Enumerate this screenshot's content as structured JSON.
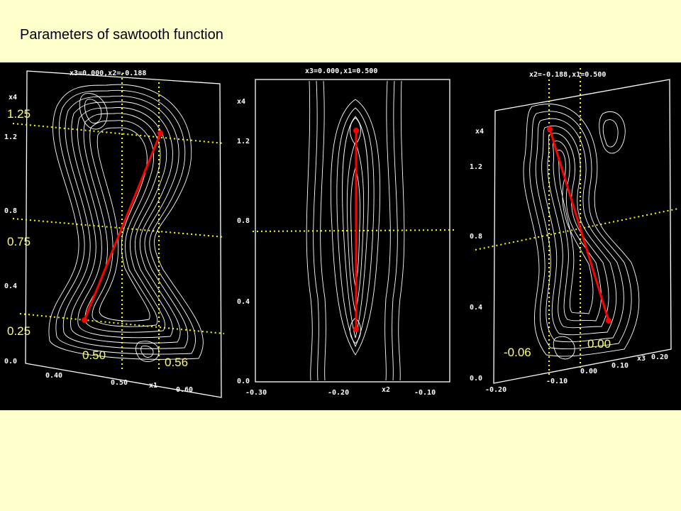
{
  "title": "Parameters of sawtooth function",
  "panels": [
    {
      "header": "x3=0.000,x2=-0.188",
      "y_axis_label": "x4",
      "y_ticks": [
        "1.2",
        "0.8",
        "0.4",
        "0.0"
      ],
      "x_axis_label": "x1",
      "x_ticks": [
        "0.40",
        "0.50",
        "0.60"
      ],
      "annotations": [
        "1.25",
        "0.75",
        "0.25",
        "0.50",
        "0.56"
      ]
    },
    {
      "header": "x3=0.000,x1=0.500",
      "y_axis_label": "x4",
      "y_ticks": [
        "1.2",
        "0.8",
        "0.4",
        "0.0"
      ],
      "x_axis_label": "x2",
      "x_ticks": [
        "-0.30",
        "-0.20",
        "-0.10"
      ]
    },
    {
      "header": "x2=-0.188,x1=0.500",
      "y_axis_label": "x4",
      "y_ticks": [
        "1.2",
        "0.8",
        "0.4",
        "0.0"
      ],
      "x_axis_label": "x3",
      "x_ticks": [
        "-0.20",
        "-0.10",
        "0.00",
        "0.10",
        "0.20"
      ],
      "annotations": [
        "-0.06",
        "0.00"
      ]
    }
  ],
  "colors": {
    "background": "#ffffcc",
    "panel": "#000000",
    "contour": "#ffffff",
    "guide": "#ffff00",
    "fit_line": "#ff0000",
    "annotation_text": "#ffff66"
  }
}
